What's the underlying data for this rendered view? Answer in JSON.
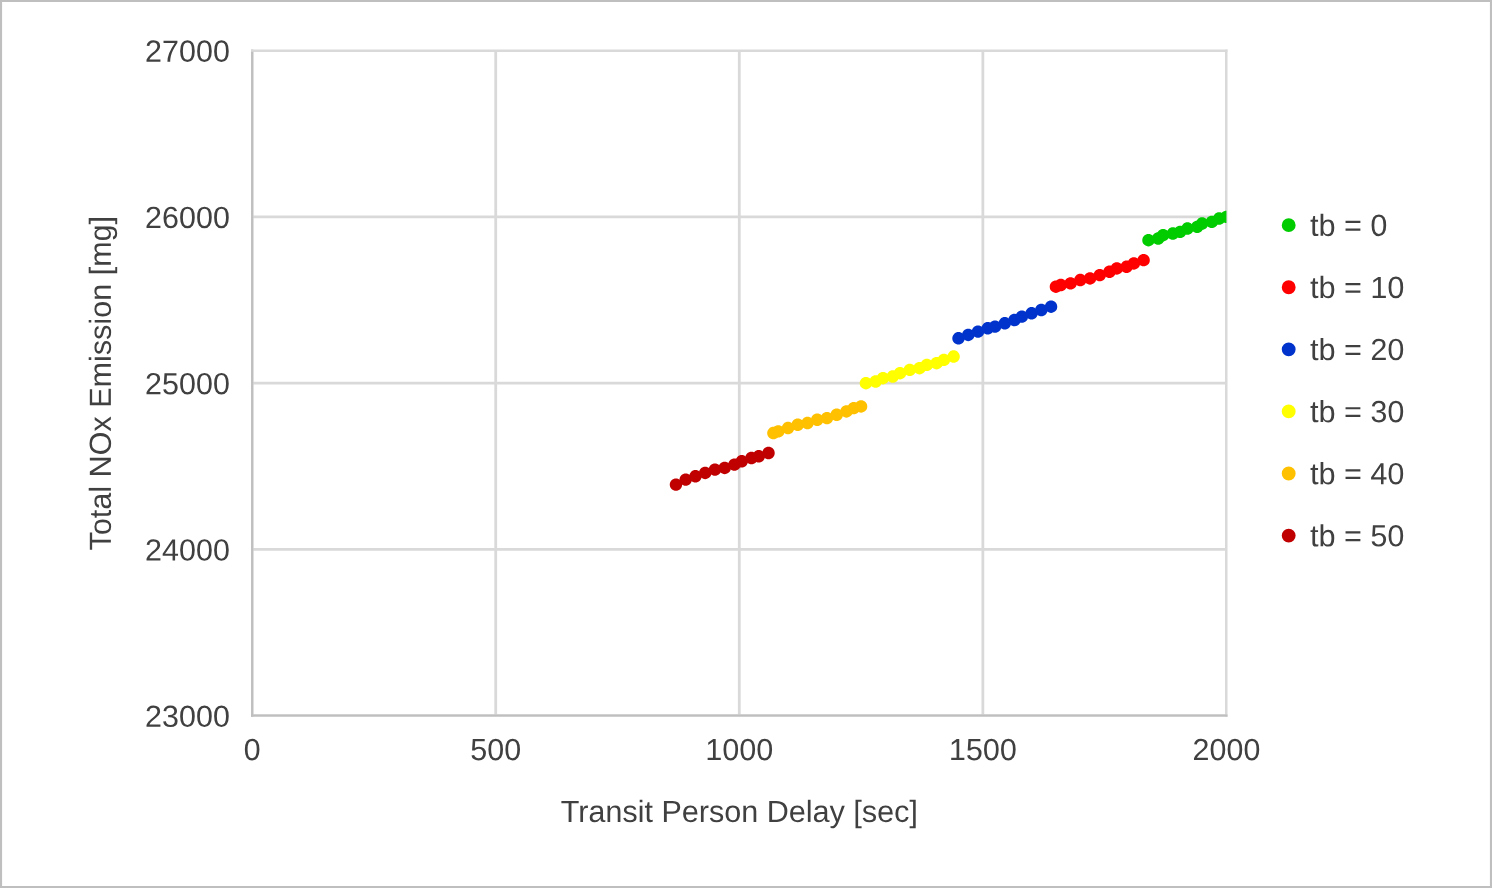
{
  "chart_data": {
    "type": "scatter",
    "xlabel": "Transit Person Delay [sec]",
    "ylabel": "Total NOx Emission [mg]",
    "xlim": [
      0,
      2000
    ],
    "xticks": [
      0,
      500,
      1000,
      1500,
      2000
    ],
    "ylim": [
      23000,
      27000
    ],
    "yticks": [
      23000,
      24000,
      25000,
      26000,
      27000
    ],
    "grid": true,
    "legend": "right",
    "marker": "circle",
    "series": [
      {
        "name": "tb = 0",
        "color": "#00cc00",
        "x": [
          1840,
          1860,
          1870,
          1890,
          1905,
          1920,
          1940,
          1950,
          1970,
          1985,
          2000
        ],
        "values": [
          25860,
          25870,
          25890,
          25900,
          25910,
          25930,
          25940,
          25960,
          25970,
          25990,
          26000
        ]
      },
      {
        "name": "tb = 10",
        "color": "#ff0000",
        "x": [
          1650,
          1660,
          1680,
          1700,
          1720,
          1740,
          1760,
          1775,
          1795,
          1810,
          1830
        ],
        "values": [
          25580,
          25590,
          25600,
          25620,
          25630,
          25650,
          25670,
          25690,
          25700,
          25720,
          25740
        ]
      },
      {
        "name": "tb = 20",
        "color": "#0033cc",
        "x": [
          1450,
          1470,
          1490,
          1510,
          1525,
          1545,
          1565,
          1580,
          1600,
          1620,
          1640
        ],
        "values": [
          25270,
          25290,
          25310,
          25330,
          25340,
          25360,
          25380,
          25400,
          25420,
          25440,
          25460
        ]
      },
      {
        "name": "tb = 30",
        "color": "#ffff00",
        "x": [
          1260,
          1280,
          1295,
          1315,
          1330,
          1350,
          1370,
          1385,
          1405,
          1420,
          1440
        ],
        "values": [
          25000,
          25010,
          25030,
          25040,
          25060,
          25080,
          25090,
          25110,
          25120,
          25140,
          25160
        ]
      },
      {
        "name": "tb = 40",
        "color": "#ffc000",
        "x": [
          1070,
          1080,
          1100,
          1120,
          1140,
          1160,
          1180,
          1200,
          1220,
          1235,
          1250
        ],
        "values": [
          24700,
          24710,
          24730,
          24750,
          24760,
          24780,
          24790,
          24810,
          24830,
          24850,
          24860
        ]
      },
      {
        "name": "tb = 50",
        "color": "#c00000",
        "x": [
          870,
          890,
          910,
          930,
          950,
          970,
          990,
          1005,
          1025,
          1040,
          1060
        ],
        "values": [
          24390,
          24420,
          24440,
          24460,
          24480,
          24490,
          24510,
          24530,
          24550,
          24560,
          24580
        ]
      }
    ]
  }
}
